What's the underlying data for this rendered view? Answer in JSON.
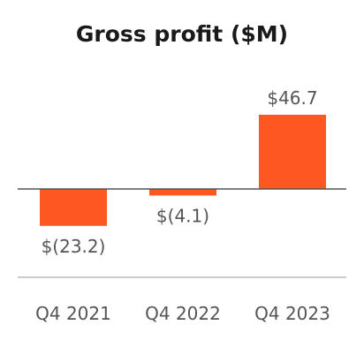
{
  "chart_data": {
    "type": "bar",
    "title": "Gross profit ($M)",
    "categories": [
      "Q4 2021",
      "Q4 2022",
      "Q4 2023"
    ],
    "values": [
      -23.2,
      -4.1,
      46.7
    ],
    "data_labels": [
      "$(23.2)",
      "$(4.1)",
      "$46.7"
    ],
    "bar_color": "#ff5722",
    "ylim": [
      -25,
      47
    ],
    "grid": false,
    "legend": "none"
  }
}
